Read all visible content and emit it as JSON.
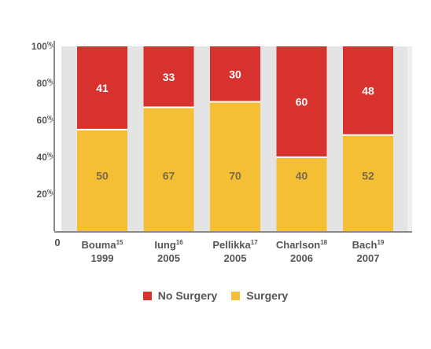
{
  "chart_data": {
    "type": "bar",
    "stacked": true,
    "categories": [
      {
        "label": "Bouma",
        "ref": "15",
        "year": "1999"
      },
      {
        "label": "Iung",
        "ref": "16",
        "year": "2005"
      },
      {
        "label": "Pellikka",
        "ref": "17",
        "year": "2005"
      },
      {
        "label": "Charlson",
        "ref": "18",
        "year": "2006"
      },
      {
        "label": "Bach",
        "ref": "19",
        "year": "2007"
      }
    ],
    "series": [
      {
        "name": "Surgery",
        "color": "#f5bf35",
        "values": [
          50,
          67,
          70,
          40,
          52
        ]
      },
      {
        "name": "No Surgery",
        "color": "#d8322e",
        "values": [
          41,
          33,
          30,
          60,
          48
        ]
      }
    ],
    "percent_of_total": true,
    "ylim": [
      0,
      100
    ],
    "yticks": [
      {
        "value": 20,
        "label": "20",
        "unit": "%"
      },
      {
        "value": 40,
        "label": "40",
        "unit": "%"
      },
      {
        "value": 60,
        "label": "60",
        "unit": "%"
      },
      {
        "value": 80,
        "label": "80",
        "unit": "%"
      },
      {
        "value": 100,
        "label": "100",
        "unit": "%"
      }
    ],
    "origin_label": "0",
    "legend": {
      "position": "bottom",
      "items": [
        "No Surgery",
        "Surgery"
      ]
    },
    "colors": {
      "plot_background": "#e4e4e4",
      "axis": "#8a8a8a",
      "text": "#555555",
      "data_label": "#ffffff",
      "data_label_yellow": "#7a6a4a"
    }
  }
}
